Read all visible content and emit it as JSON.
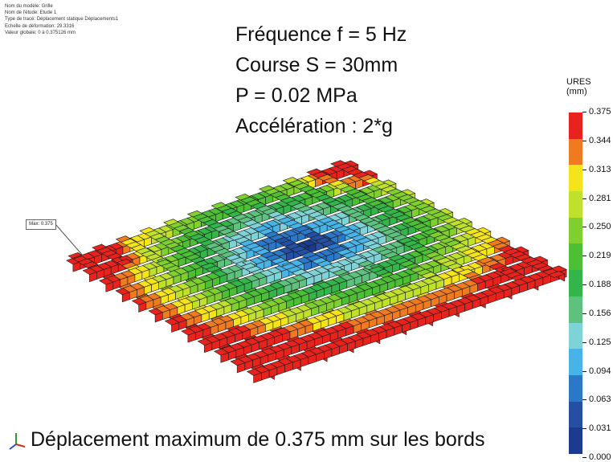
{
  "meta": {
    "model_name": "Nom du modèle: Grille",
    "study_name": "Nom de l'étude: Etude 1",
    "plot_type": "Type de tracé: Déplacement statique Déplacements1",
    "deformation_scale": "Echelle de déformation: 29.3316",
    "global_value": "Valeur globale: 0 à 0.375126 mm"
  },
  "parameters": [
    "Fréquence f = 5 Hz",
    "Course S = 30mm",
    "P = 0.02 MPa",
    "Accélération : 2*g"
  ],
  "max_label": "Max: 0.375",
  "legend": {
    "title": "URES (mm)",
    "ticks": [
      "0.375",
      "0.344",
      "0.313",
      "0.281",
      "0.250",
      "0.219",
      "0.188",
      "0.156",
      "0.125",
      "0.094",
      "0.063",
      "0.031",
      "0.000"
    ],
    "colors": [
      "#e8231e",
      "#f07a1f",
      "#f5e41a",
      "#bfe12b",
      "#7fcf2f",
      "#4cbf35",
      "#34b54a",
      "#5ec17e",
      "#7fd2d6",
      "#48b3e6",
      "#2b78c8",
      "#244fa3",
      "#1c3a8f"
    ]
  },
  "caption": "Déplacement maximum de 0.375 mm sur les bords"
}
